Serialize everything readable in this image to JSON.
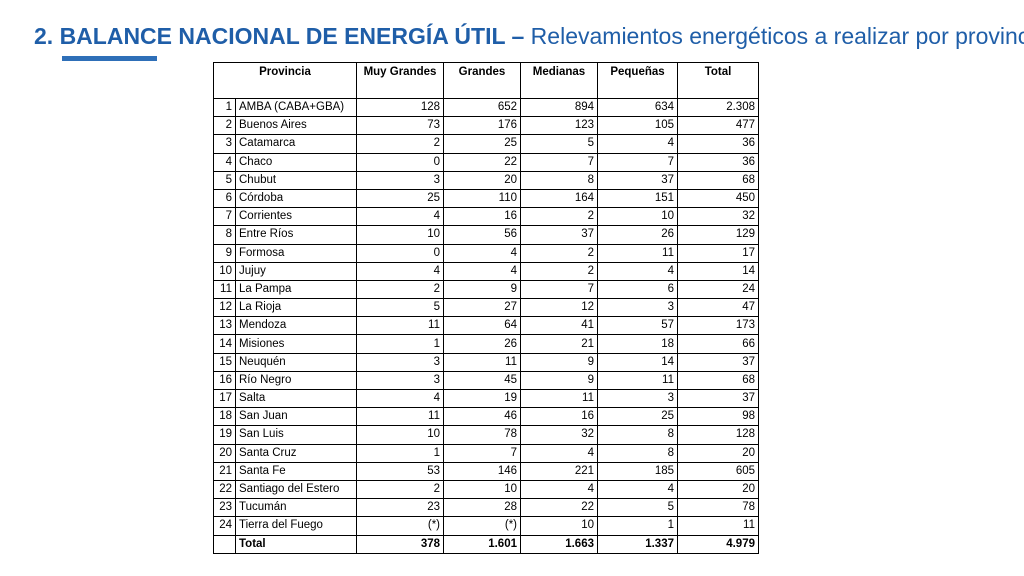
{
  "slide": {
    "title_bold": "2. BALANCE NACIONAL DE ENERGÍA ÚTIL –",
    "title_rest": " Relevamientos energéticos a realizar por provincia"
  },
  "table": {
    "headers": {
      "provincia": "Provincia",
      "muy_grandes": "Muy Grandes",
      "grandes": "Grandes",
      "medianas": "Medianas",
      "pequenas": "Pequeñas",
      "total": "Total"
    },
    "rows": [
      {
        "n": "1",
        "name": "AMBA (CABA+GBA)",
        "mg": "128",
        "g": "652",
        "m": "894",
        "p": "634",
        "t": "2.308"
      },
      {
        "n": "2",
        "name": "Buenos Aires",
        "mg": "73",
        "g": "176",
        "m": "123",
        "p": "105",
        "t": "477"
      },
      {
        "n": "3",
        "name": "Catamarca",
        "mg": "2",
        "g": "25",
        "m": "5",
        "p": "4",
        "t": "36"
      },
      {
        "n": "4",
        "name": "Chaco",
        "mg": "0",
        "g": "22",
        "m": "7",
        "p": "7",
        "t": "36"
      },
      {
        "n": "5",
        "name": "Chubut",
        "mg": "3",
        "g": "20",
        "m": "8",
        "p": "37",
        "t": "68"
      },
      {
        "n": "6",
        "name": "Córdoba",
        "mg": "25",
        "g": "110",
        "m": "164",
        "p": "151",
        "t": "450"
      },
      {
        "n": "7",
        "name": "Corrientes",
        "mg": "4",
        "g": "16",
        "m": "2",
        "p": "10",
        "t": "32"
      },
      {
        "n": "8",
        "name": "Entre Ríos",
        "mg": "10",
        "g": "56",
        "m": "37",
        "p": "26",
        "t": "129"
      },
      {
        "n": "9",
        "name": "Formosa",
        "mg": "0",
        "g": "4",
        "m": "2",
        "p": "11",
        "t": "17"
      },
      {
        "n": "10",
        "name": "Jujuy",
        "mg": "4",
        "g": "4",
        "m": "2",
        "p": "4",
        "t": "14"
      },
      {
        "n": "11",
        "name": "La Pampa",
        "mg": "2",
        "g": "9",
        "m": "7",
        "p": "6",
        "t": "24"
      },
      {
        "n": "12",
        "name": "La Rioja",
        "mg": "5",
        "g": "27",
        "m": "12",
        "p": "3",
        "t": "47"
      },
      {
        "n": "13",
        "name": "Mendoza",
        "mg": "11",
        "g": "64",
        "m": "41",
        "p": "57",
        "t": "173"
      },
      {
        "n": "14",
        "name": "Misiones",
        "mg": "1",
        "g": "26",
        "m": "21",
        "p": "18",
        "t": "66"
      },
      {
        "n": "15",
        "name": "Neuquén",
        "mg": "3",
        "g": "11",
        "m": "9",
        "p": "14",
        "t": "37"
      },
      {
        "n": "16",
        "name": "Río Negro",
        "mg": "3",
        "g": "45",
        "m": "9",
        "p": "11",
        "t": "68"
      },
      {
        "n": "17",
        "name": "Salta",
        "mg": "4",
        "g": "19",
        "m": "11",
        "p": "3",
        "t": "37"
      },
      {
        "n": "18",
        "name": "San Juan",
        "mg": "11",
        "g": "46",
        "m": "16",
        "p": "25",
        "t": "98"
      },
      {
        "n": "19",
        "name": "San Luis",
        "mg": "10",
        "g": "78",
        "m": "32",
        "p": "8",
        "t": "128"
      },
      {
        "n": "20",
        "name": "Santa Cruz",
        "mg": "1",
        "g": "7",
        "m": "4",
        "p": "8",
        "t": "20"
      },
      {
        "n": "21",
        "name": "Santa Fe",
        "mg": "53",
        "g": "146",
        "m": "221",
        "p": "185",
        "t": "605"
      },
      {
        "n": "22",
        "name": "Santiago del Estero",
        "mg": "2",
        "g": "10",
        "m": "4",
        "p": "4",
        "t": "20"
      },
      {
        "n": "23",
        "name": "Tucumán",
        "mg": "23",
        "g": "28",
        "m": "22",
        "p": "5",
        "t": "78"
      },
      {
        "n": "24",
        "name": "Tierra del Fuego",
        "mg": "(*)",
        "g": "(*)",
        "m": "10",
        "p": "1",
        "t": "11"
      }
    ],
    "total_row": {
      "n": "",
      "name": "Total",
      "mg": "378",
      "g": "1.601",
      "m": "1.663",
      "p": "1.337",
      "t": "4.979"
    }
  }
}
